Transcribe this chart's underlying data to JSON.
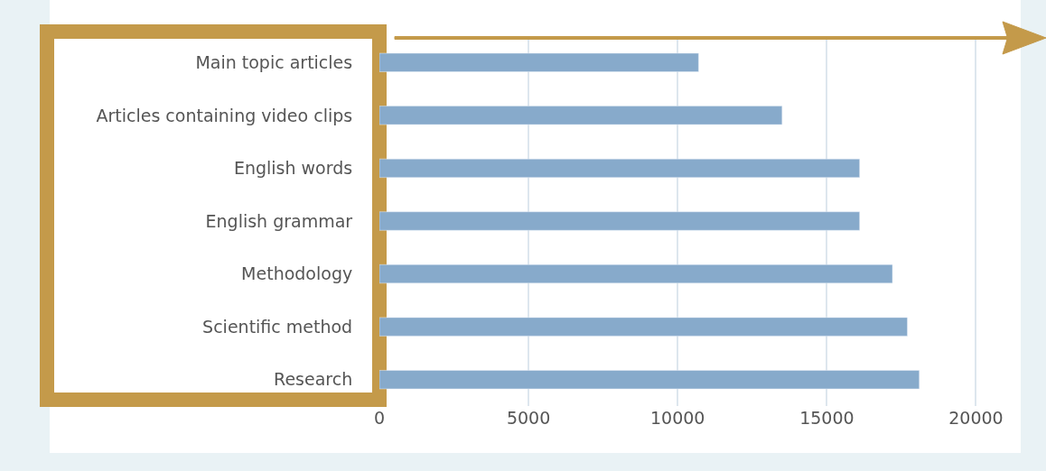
{
  "chart_data": {
    "type": "bar",
    "orientation": "horizontal",
    "categories": [
      "Main topic articles",
      "Articles containing video clips",
      "English words",
      "English grammar",
      "Methodology",
      "Scientific method",
      "Research"
    ],
    "values": [
      10700,
      13500,
      16100,
      16100,
      17200,
      17700,
      18100
    ],
    "color": "#87aacb",
    "xlim": [
      0,
      21500
    ],
    "xticks": [
      0,
      5000,
      10000,
      15000,
      20000
    ],
    "grid": "x"
  }
}
